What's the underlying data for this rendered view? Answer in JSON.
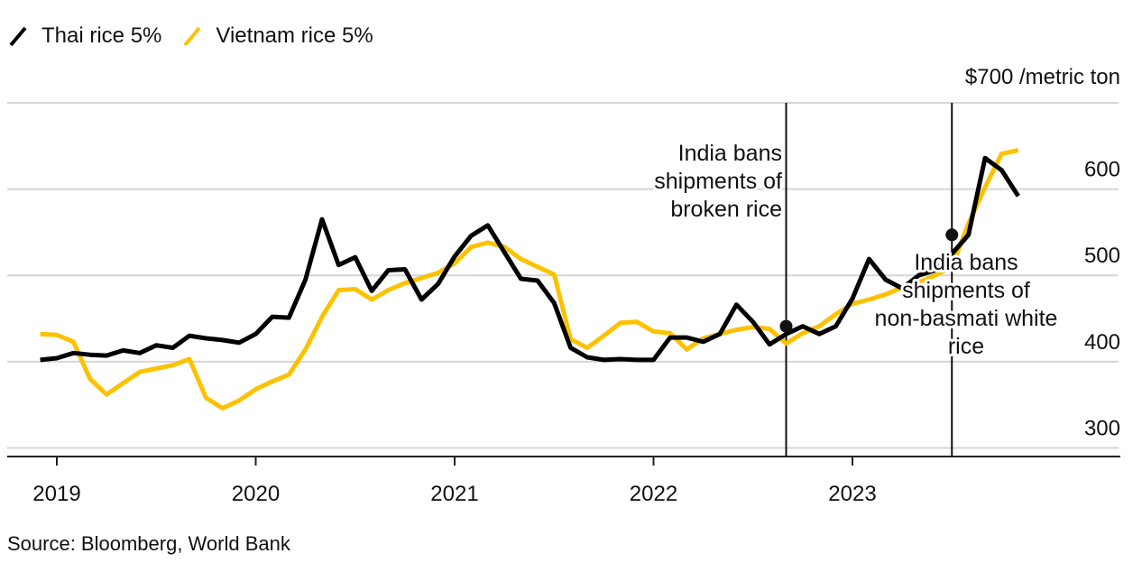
{
  "legend": {
    "items": [
      {
        "label": "Thai rice 5%",
        "color": "#000000"
      },
      {
        "label": "Vietnam rice 5%",
        "color": "#fcc201"
      }
    ]
  },
  "source": "Source: Bloomberg, World Bank",
  "chart_data": {
    "type": "line",
    "title": "",
    "y_unit_label": "$700 /metric ton",
    "ylim": [
      290,
      700
    ],
    "y_ticks": [
      300,
      400,
      500,
      600
    ],
    "y_tick_labels": [
      "300",
      "400",
      "500",
      "600"
    ],
    "x_range": [
      "2018-12",
      "2023-12"
    ],
    "x_ticks": [
      "2019-01",
      "2020-01",
      "2021-01",
      "2022-01",
      "2023-01"
    ],
    "x_tick_labels": [
      "2019",
      "2020",
      "2021",
      "2022",
      "2023"
    ],
    "grid": "horizontal",
    "legend_position": "top-left",
    "series": [
      {
        "name": "Thai rice 5%",
        "color": "#000000",
        "x": [
          "2018-12",
          "2019-01",
          "2019-02",
          "2019-03",
          "2019-04",
          "2019-05",
          "2019-06",
          "2019-07",
          "2019-08",
          "2019-09",
          "2019-10",
          "2019-11",
          "2019-12",
          "2020-01",
          "2020-02",
          "2020-03",
          "2020-04",
          "2020-05",
          "2020-06",
          "2020-07",
          "2020-08",
          "2020-09",
          "2020-10",
          "2020-11",
          "2020-12",
          "2021-01",
          "2021-02",
          "2021-03",
          "2021-04",
          "2021-05",
          "2021-06",
          "2021-07",
          "2021-08",
          "2021-09",
          "2021-10",
          "2021-11",
          "2021-12",
          "2022-01",
          "2022-02",
          "2022-03",
          "2022-04",
          "2022-05",
          "2022-06",
          "2022-07",
          "2022-08",
          "2022-09",
          "2022-10",
          "2022-11",
          "2022-12",
          "2023-01",
          "2023-02",
          "2023-03",
          "2023-04",
          "2023-05",
          "2023-06",
          "2023-07",
          "2023-08",
          "2023-09",
          "2023-10",
          "2023-11"
        ],
        "values": [
          402,
          404,
          410,
          408,
          407,
          413,
          410,
          419,
          416,
          430,
          427,
          425,
          422,
          432,
          452,
          451,
          495,
          565,
          512,
          521,
          482,
          506,
          507,
          472,
          490,
          522,
          546,
          558,
          527,
          496,
          494,
          468,
          416,
          405,
          402,
          403,
          402,
          402,
          428,
          428,
          423,
          432,
          466,
          446,
          420,
          432,
          441,
          432,
          441,
          473,
          519,
          495,
          485,
          500,
          506,
          525,
          547,
          636,
          622,
          592
        ]
      },
      {
        "name": "Vietnam rice 5%",
        "color": "#fcc201",
        "x": [
          "2018-12",
          "2019-01",
          "2019-02",
          "2019-03",
          "2019-04",
          "2019-05",
          "2019-06",
          "2019-07",
          "2019-08",
          "2019-09",
          "2019-10",
          "2019-11",
          "2019-12",
          "2020-01",
          "2020-02",
          "2020-03",
          "2020-04",
          "2020-05",
          "2020-06",
          "2020-07",
          "2020-08",
          "2020-09",
          "2020-10",
          "2020-11",
          "2020-12",
          "2021-01",
          "2021-02",
          "2021-03",
          "2021-04",
          "2021-05",
          "2021-06",
          "2021-07",
          "2021-08",
          "2021-09",
          "2021-10",
          "2021-11",
          "2021-12",
          "2022-01",
          "2022-02",
          "2022-03",
          "2022-04",
          "2022-05",
          "2022-06",
          "2022-07",
          "2022-08",
          "2022-09",
          "2022-10",
          "2022-11",
          "2022-12",
          "2023-01",
          "2023-02",
          "2023-03",
          "2023-04",
          "2023-05",
          "2023-06",
          "2023-07",
          "2023-08",
          "2023-09",
          "2023-10",
          "2023-11"
        ],
        "values": [
          432,
          431,
          423,
          380,
          362,
          375,
          388,
          392,
          396,
          403,
          358,
          346,
          355,
          368,
          377,
          385,
          414,
          452,
          483,
          484,
          472,
          483,
          491,
          497,
          503,
          514,
          533,
          538,
          533,
          519,
          510,
          501,
          426,
          416,
          430,
          445,
          446,
          435,
          433,
          414,
          427,
          432,
          437,
          440,
          438,
          421,
          433,
          441,
          455,
          467,
          472,
          478,
          486,
          492,
          500,
          510,
          560,
          602,
          641,
          645
        ]
      }
    ],
    "annotations": [
      {
        "date": "2022-09",
        "label_lines": [
          "India bans",
          "shipments of",
          "broken rice"
        ],
        "marker_value": 441
      },
      {
        "date": "2023-07",
        "label_lines": [
          "India bans",
          "shipments of",
          "non-basmati white",
          "rice"
        ],
        "marker_value": 547
      }
    ]
  }
}
